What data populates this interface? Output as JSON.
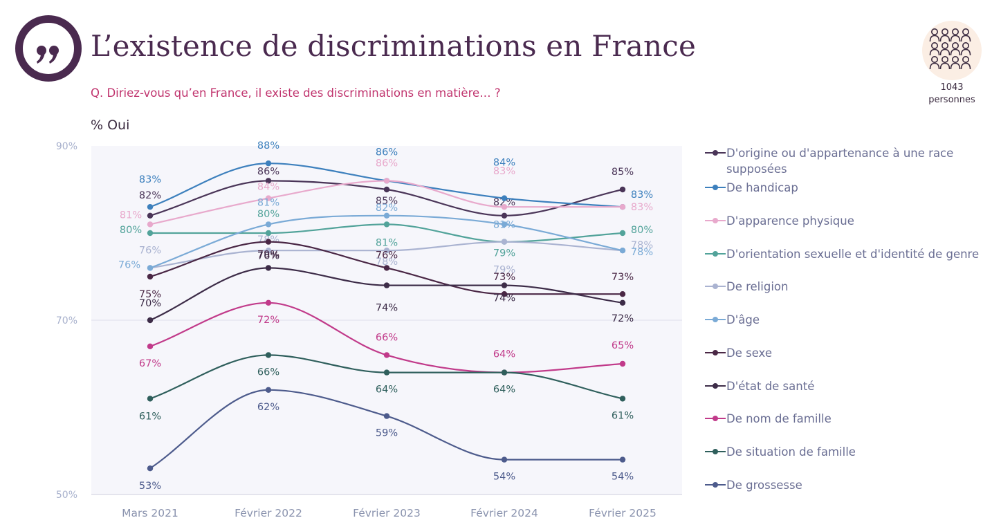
{
  "header": {
    "title": "L’existence de discriminations en France",
    "question": "Q. Diriez-vous qu’en France, il existe des discriminations en matière… ?",
    "unit_label": "% Oui"
  },
  "sample": {
    "count": "1043",
    "label": "personnes",
    "icon": "group-people-icon"
  },
  "chart_data": {
    "type": "line",
    "x": [
      "Mars 2021",
      "Février 2022",
      "Février 2023",
      "Février 2024",
      "Février 2025"
    ],
    "y_ticks": [
      "90%",
      "70%",
      "50%"
    ],
    "ylim": [
      50,
      90
    ],
    "grid": "horizontal at 70%",
    "legend_position": "right",
    "series": [
      {
        "name": "D'origine ou d'appartenance à une race supposées",
        "color": "#4a3558",
        "values": [
          82,
          86,
          85,
          82,
          85
        ],
        "labels": [
          "82%",
          "86%",
          "85%",
          "82%",
          "85%"
        ]
      },
      {
        "name": "De handicap",
        "color": "#3d80bd",
        "values": [
          83,
          88,
          86,
          84,
          83
        ],
        "labels": [
          "83%",
          "88%",
          "86%",
          "84%",
          "83%"
        ]
      },
      {
        "name": "D'apparence physique",
        "color": "#e8a9cc",
        "values": [
          81,
          84,
          86,
          83,
          83
        ],
        "labels": [
          "81%",
          "84%",
          "86%",
          "83%",
          "83%"
        ]
      },
      {
        "name": "D'orientation sexuelle et d'identité de genre",
        "color": "#52a39a",
        "values": [
          80,
          80,
          81,
          79,
          80
        ],
        "labels": [
          "80%",
          "80%",
          "81%",
          "79%",
          "80%"
        ]
      },
      {
        "name": "De religion",
        "color": "#aab3d1",
        "values": [
          76,
          78,
          78,
          79,
          78
        ],
        "labels": [
          "76%",
          "78%",
          "78%",
          "79%",
          "78%"
        ]
      },
      {
        "name": "D'âge",
        "color": "#7aaad6",
        "values": [
          76,
          81,
          82,
          81,
          78
        ],
        "labels": [
          "76%",
          "81%",
          "82%",
          "81%",
          "78%"
        ]
      },
      {
        "name": "De sexe",
        "color": "#4a2745",
        "values": [
          75,
          79,
          76,
          73,
          73
        ],
        "labels": [
          "75%",
          "79%",
          "76%",
          "73%",
          "73%"
        ]
      },
      {
        "name": "D'état de santé",
        "color": "#3d2c48",
        "values": [
          70,
          76,
          74,
          74,
          72
        ],
        "labels": [
          "70%",
          "76%",
          "74%",
          "74%",
          "72%"
        ]
      },
      {
        "name": "De nom de famille",
        "color": "#c13a8a",
        "values": [
          67,
          72,
          66,
          64,
          65
        ],
        "labels": [
          "67%",
          "72%",
          "66%",
          "64%",
          "65%"
        ]
      },
      {
        "name": "De situation de famille",
        "color": "#2f5f5c",
        "values": [
          61,
          66,
          64,
          64,
          61
        ],
        "labels": [
          "61%",
          "66%",
          "64%",
          "64%",
          "61%"
        ]
      },
      {
        "name": "De grossesse",
        "color": "#4d5b8c",
        "values": [
          53,
          62,
          59,
          54,
          54
        ],
        "labels": [
          "53%",
          "62%",
          "59%",
          "54%",
          "54%"
        ]
      }
    ]
  }
}
